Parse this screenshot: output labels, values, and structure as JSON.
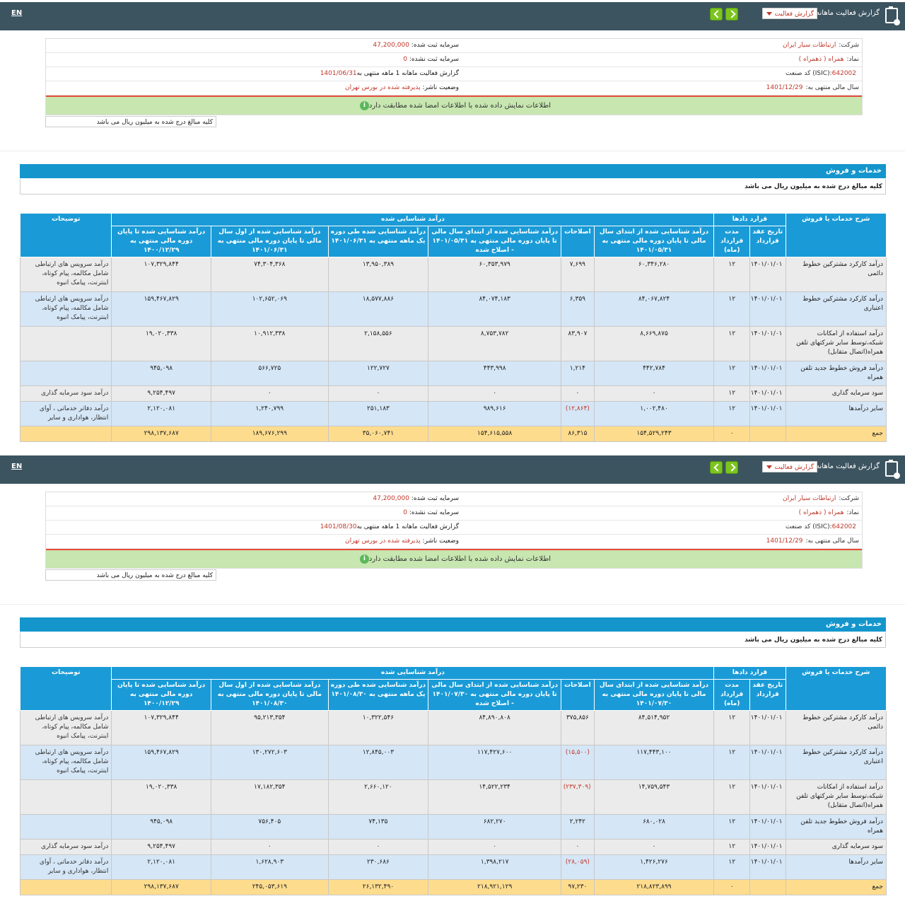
{
  "panels": [
    {
      "lang": "EN",
      "topbar": {
        "title": "گزارش فعالیت ماهانه",
        "select_value": "گزارش فعالیت"
      },
      "info": {
        "company_label": "شرکت:",
        "company": "ارتباطات سیار ایران",
        "capital_label": "سرمایه ثبت شده:",
        "capital": "47,200,000",
        "symbol_label": "نماد:",
        "symbol": "همراه ( ذهمراه )",
        "unreg_label": "سرمایه ثبت نشده:",
        "unreg": "0",
        "isic_label": "کد صنعت (ISIC):",
        "isic": "642002",
        "report_label": "گزارش فعالیت ماهانه 1 ماهه منتهی به",
        "report": "1401/06/31",
        "fy_label": "سال مالی منتهی به:",
        "fy": "1401/12/29",
        "status_label": "وضعیت ناشر:",
        "status": "پذیرفته شده در بورس تهران"
      },
      "green_msg": "اطلاعات نمایش داده شده با اطلاعات امضا شده مطابقت دارد",
      "unit_note": "کلیه مبالغ درج شده به میلیون ریال می باشد",
      "section_title": "خدمات و فروش",
      "section_note": "کلیه مبالغ درج شده به میلیون ریال می باشد",
      "headers": {
        "desc": "شرح خدمات یا فروش",
        "contracts": "قرارد دادها",
        "recognized": "درآمد شناسایی شده",
        "notes": "توضیحات",
        "date": "تاریخ عقد قرارداد",
        "term": "مدت قرارداد (ماه)",
        "c1": "درآمد شناسایی شده از ابتدای سال مالی تا پایان دوره مالی منتهی به ۱۴۰۱/۰۵/۳۱",
        "c2": "اصلاحات",
        "c3": "درآمد شناسایی شده از ابتدای سال مالی تا پایان دوره مالی منتهی به ۱۴۰۱/۰۵/۳۱ - اصلاح شده",
        "c4": "درآمد شناسایی شده طی دوره یک ماهه منتهی به ۱۴۰۱/۰۶/۳۱",
        "c5": "درآمد شناسایی شده از اول سال مالی تا پایان دوره مالی منتهی به ۱۴۰۱/۰۶/۳۱",
        "c6": "درآمد شناسایی شده تا پایان دوره مالی منتهی به ۱۴۰۰/۱۲/۲۹"
      },
      "rows": [
        {
          "desc": "درآمد کارکرد مشترکین خطوط دائمی",
          "date": "۱۴۰۱/۰۱/۰۱",
          "term": "۱۲",
          "c1": "۶۰,۳۴۶,۲۸۰",
          "c2": "۷,۶۹۹",
          "c3": "۶۰,۳۵۳,۹۷۹",
          "c4": "۱۳,۹۵۰,۳۸۹",
          "c5": "۷۴,۳۰۴,۳۶۸",
          "c6": "۱۰۷,۳۲۹,۸۴۴",
          "note": "درآمد سرویس های ارتباطی شامل مکالمه، پیام کوتاه، اینترنت، پیامک انبوه"
        },
        {
          "desc": "درآمد کارکرد مشترکین خطوط اعتباری",
          "date": "۱۴۰۱/۰۱/۰۱",
          "term": "۱۲",
          "c1": "۸۴,۰۶۷,۸۲۴",
          "c2": "۶,۳۵۹",
          "c3": "۸۴,۰۷۴,۱۸۳",
          "c4": "۱۸,۵۷۷,۸۸۶",
          "c5": "۱۰۲,۶۵۲,۰۶۹",
          "c6": "۱۵۹,۴۶۷,۸۲۹",
          "note": "درآمد سرویس های ارتباطی شامل مکالمه، پیام کوتاه، اینترنت، پیامک انبوه"
        },
        {
          "desc": "درآمد استفاده از امکانات شبکه،توسط سایر شرکتهای تلفن همراه(اتصال متقابل)",
          "date": "۱۴۰۱/۰۱/۰۱",
          "term": "۱۲",
          "c1": "۸,۶۶۹,۸۷۵",
          "c2": "۸۳,۹۰۷",
          "c3": "۸,۷۵۳,۷۸۲",
          "c4": "۲,۱۵۸,۵۵۶",
          "c5": "۱۰,۹۱۲,۳۳۸",
          "c6": "۱۹,۰۲۰,۳۳۸",
          "note": ""
        },
        {
          "desc": "درآمد فروش خطوط جدید تلفن همراه",
          "date": "۱۴۰۱/۰۱/۰۱",
          "term": "۱۲",
          "c1": "۴۴۲,۷۸۴",
          "c2": "۱,۲۱۴",
          "c3": "۴۴۳,۹۹۸",
          "c4": "۱۲۲,۷۲۷",
          "c5": "۵۶۶,۷۲۵",
          "c6": "۹۴۵,۰۹۸",
          "note": ""
        },
        {
          "desc": "سود سرمایه گذاری",
          "date": "۱۴۰۱/۰۱/۰۱",
          "term": "۱۲",
          "c1": "۰",
          "c2": "۰",
          "c3": "۰",
          "c4": "۰",
          "c5": "۰",
          "c6": "۹,۲۵۴,۴۹۷",
          "note": "درآمد سود سرمایه گذاری"
        },
        {
          "desc": "سایر درآمدها",
          "date": "۱۴۰۱/۰۱/۰۱",
          "term": "۱۲",
          "c1": "۱,۰۰۲,۴۸۰",
          "c2": "(۱۲,۸۶۴)",
          "c2neg": true,
          "c3": "۹۸۹,۶۱۶",
          "c4": "۲۵۱,۱۸۳",
          "c5": "۱,۲۴۰,۷۹۹",
          "c6": "۲,۱۲۰,۰۸۱",
          "note": "درآمد دفاتر خدماتی ، آوای انتظار، هواداری و سایر"
        }
      ],
      "total": {
        "desc": "جمع",
        "date": "",
        "term": "۰",
        "c1": "۱۵۴,۵۲۹,۲۴۳",
        "c2": "۸۶,۳۱۵",
        "c3": "۱۵۴,۶۱۵,۵۵۸",
        "c4": "۳۵,۰۶۰,۷۴۱",
        "c5": "۱۸۹,۶۷۶,۲۹۹",
        "c6": "۲۹۸,۱۳۷,۶۸۷",
        "note": ""
      }
    },
    {
      "lang": "EN",
      "topbar": {
        "title": "گزارش فعالیت ماهانه",
        "select_value": "گزارش فعالیت"
      },
      "info": {
        "company_label": "شرکت:",
        "company": "ارتباطات سیار ایران",
        "capital_label": "سرمایه ثبت شده:",
        "capital": "47,200,000",
        "symbol_label": "نماد:",
        "symbol": "همراه ( ذهمراه )",
        "unreg_label": "سرمایه ثبت نشده:",
        "unreg": "0",
        "isic_label": "کد صنعت (ISIC):",
        "isic": "642002",
        "report_label": "گزارش فعالیت ماهانه 1 ماهه منتهی به",
        "report": "1401/08/30",
        "fy_label": "سال مالی منتهی به:",
        "fy": "1401/12/29",
        "status_label": "وضعیت ناشر:",
        "status": "پذیرفته شده در بورس تهران"
      },
      "green_msg": "اطلاعات نمایش داده شده با اطلاعات امضا شده مطابقت دارد",
      "unit_note": "کلیه مبالغ درج شده به میلیون ریال می باشد",
      "section_title": "خدمات و فروش",
      "section_note": "کلیه مبالغ درج شده به میلیون ریال می باشد",
      "headers": {
        "desc": "شرح خدمات یا فروش",
        "contracts": "قرارد دادها",
        "recognized": "درآمد شناسایی شده",
        "notes": "توضیحات",
        "date": "تاریخ عقد قرارداد",
        "term": "مدت قرارداد (ماه)",
        "c1": "درآمد شناسایی شده از ابتدای سال مالی تا پایان دوره مالی منتهی به ۱۴۰۱/۰۷/۳۰",
        "c2": "اصلاحات",
        "c3": "درآمد شناسایی شده از ابتدای سال مالی تا پایان دوره مالی منتهی به ۱۴۰۱/۰۷/۳۰ - اصلاح شده",
        "c4": "درآمد شناسایی شده طی دوره یک ماهه منتهی به ۱۴۰۱/۰۸/۳۰",
        "c5": "درآمد شناسایی شده از اول سال مالی تا پایان دوره مالی منتهی به ۱۴۰۱/۰۸/۳۰",
        "c6": "درآمد شناسایی شده تا پایان دوره مالی منتهی به ۱۴۰۰/۱۲/۲۹"
      },
      "rows": [
        {
          "desc": "درآمد کارکرد مشترکین خطوط دائمی",
          "date": "۱۴۰۱/۰۱/۰۱",
          "term": "۱۲",
          "c1": "۸۴,۵۱۴,۹۵۲",
          "c2": "۳۷۵,۸۵۶",
          "c3": "۸۴,۸۹۰,۸۰۸",
          "c4": "۱۰,۳۲۲,۵۴۶",
          "c5": "۹۵,۲۱۳,۳۵۴",
          "c6": "۱۰۷,۳۲۹,۸۴۴",
          "note": "درآمد سرویس های ارتباطی شامل مکالمه، پیام کوتاه، اینترنت، پیامک انبوه"
        },
        {
          "desc": "درآمد کارکرد مشترکین خطوط اعتباری",
          "date": "۱۴۰۱/۰۱/۰۱",
          "term": "۱۲",
          "c1": "۱۱۷,۴۴۳,۱۰۰",
          "c2": "(۱۵,۵۰۰)",
          "c2neg": true,
          "c3": "۱۱۷,۴۲۷,۶۰۰",
          "c4": "۱۲,۸۴۵,۰۰۳",
          "c5": "۱۳۰,۲۷۲,۶۰۳",
          "c6": "۱۵۹,۴۶۷,۸۲۹",
          "note": "درآمد سرویس های ارتباطی شامل مکالمه، پیام کوتاه، اینترنت، پیامک انبوه"
        },
        {
          "desc": "درآمد استفاده از امکانات شبکه،توسط سایر شرکتهای تلفن همراه(اتصال متقابل)",
          "date": "۱۴۰۱/۰۱/۰۱",
          "term": "۱۲",
          "c1": "۱۴,۷۵۹,۵۴۳",
          "c2": "(۲۳۷,۳۰۹)",
          "c2neg": true,
          "c3": "۱۴,۵۲۲,۲۳۴",
          "c4": "۲,۶۶۰,۱۲۰",
          "c5": "۱۷,۱۸۲,۳۵۴",
          "c6": "۱۹,۰۲۰,۳۳۸",
          "note": ""
        },
        {
          "desc": "درآمد فروش خطوط جدید تلفن همراه",
          "date": "۱۴۰۱/۰۱/۰۱",
          "term": "۱۲",
          "c1": "۶۸۰,۰۲۸",
          "c2": "۲,۲۴۲",
          "c3": "۶۸۲,۲۷۰",
          "c4": "۷۴,۱۳۵",
          "c5": "۷۵۶,۴۰۵",
          "c6": "۹۴۵,۰۹۸",
          "note": ""
        },
        {
          "desc": "سود سرمایه گذاری",
          "date": "۱۴۰۱/۰۱/۰۱",
          "term": "۱۲",
          "c1": "۰",
          "c2": "۰",
          "c3": "۰",
          "c4": "۰",
          "c5": "۰",
          "c6": "۹,۲۵۴,۴۹۷",
          "note": "درآمد سود سرمایه گذاری"
        },
        {
          "desc": "سایر درآمدها",
          "date": "۱۴۰۱/۰۱/۰۱",
          "term": "۱۲",
          "c1": "۱,۴۲۶,۲۷۶",
          "c2": "(۲۸,۰۵۹)",
          "c2neg": true,
          "c3": "۱,۳۹۸,۲۱۷",
          "c4": "۲۳۰,۶۸۶",
          "c5": "۱,۶۲۸,۹۰۳",
          "c6": "۲,۱۲۰,۰۸۱",
          "note": "درآمد دفاتر خدماتی ، آوای انتظار، هواداری و سایر"
        }
      ],
      "total": {
        "desc": "جمع",
        "date": "",
        "term": "۰",
        "c1": "۲۱۸,۸۲۳,۸۹۹",
        "c2": "۹۷,۲۳۰",
        "c3": "۲۱۸,۹۲۱,۱۲۹",
        "c4": "۲۶,۱۳۲,۴۹۰",
        "c5": "۲۴۵,۰۵۳,۶۱۹",
        "c6": "۲۹۸,۱۳۷,۶۸۷",
        "note": ""
      }
    }
  ]
}
